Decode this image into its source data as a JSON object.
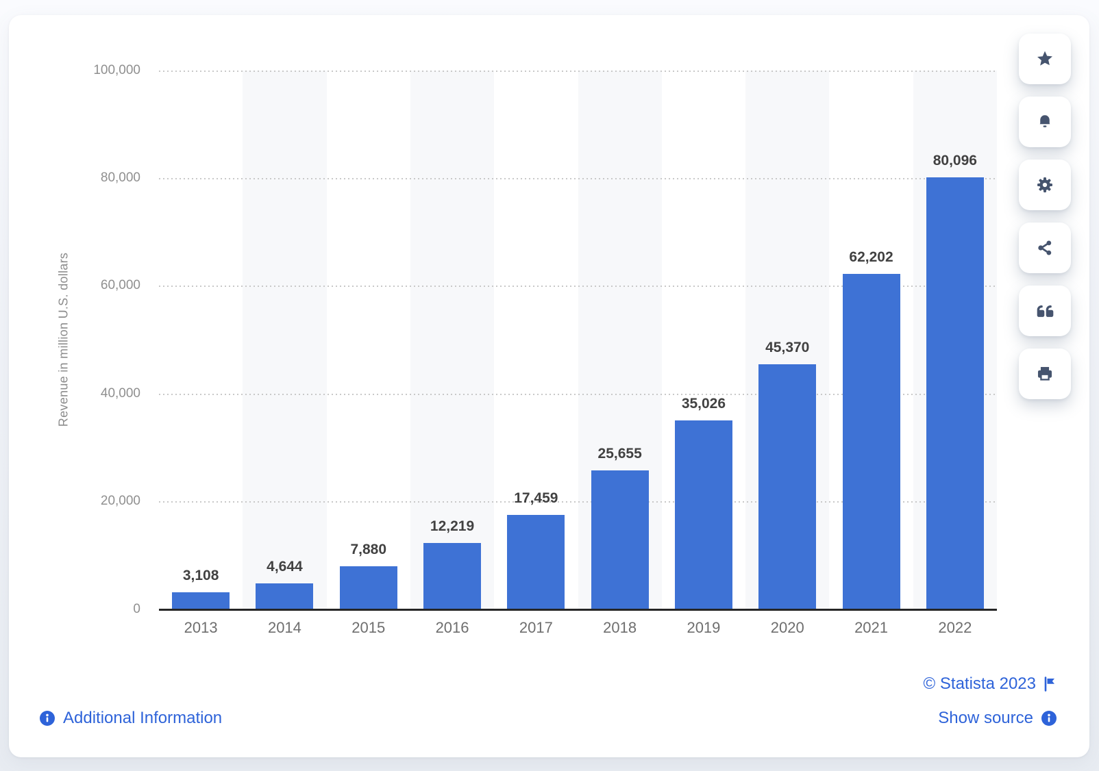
{
  "chart_data": {
    "type": "bar",
    "title": "",
    "categories": [
      "2013",
      "2014",
      "2015",
      "2016",
      "2017",
      "2018",
      "2019",
      "2020",
      "2021",
      "2022"
    ],
    "values": [
      3108,
      4644,
      7880,
      12219,
      17459,
      25655,
      35026,
      45370,
      62202,
      80096
    ],
    "value_labels": [
      "3,108",
      "4,644",
      "7,880",
      "12,219",
      "17,459",
      "25,655",
      "35,026",
      "45,370",
      "62,202",
      "80,096"
    ],
    "xlabel": "",
    "ylabel": "Revenue in million U.S. dollars",
    "ylim": [
      0,
      100000
    ],
    "ytick_labels": [
      "100,000",
      "80,000",
      "60,000",
      "40,000",
      "20,000",
      "0"
    ],
    "grid": "horizontal-dotted",
    "legend": null,
    "bar_color": "#3E72D5",
    "alternating_band_color": "#f7f8fa"
  },
  "footer": {
    "additional_information": "Additional Information",
    "copyright": "© Statista 2023",
    "show_source": "Show source"
  },
  "toolbar": {
    "items": [
      {
        "name": "favorite",
        "icon": "star-icon"
      },
      {
        "name": "alerts",
        "icon": "bell-icon"
      },
      {
        "name": "settings",
        "icon": "gear-icon"
      },
      {
        "name": "share",
        "icon": "share-icon"
      },
      {
        "name": "cite",
        "icon": "quote-icon"
      },
      {
        "name": "print",
        "icon": "print-icon"
      }
    ]
  },
  "colors": {
    "bar": "#3E72D5",
    "link": "#2E63D9",
    "toolbar_icon": "#46546E",
    "axis": "#262626",
    "tick_text": "#8f8f8f",
    "value_text": "#414141"
  }
}
